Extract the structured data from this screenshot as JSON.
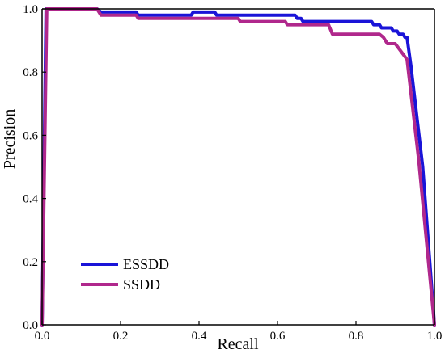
{
  "chart_data": {
    "type": "line",
    "title": "",
    "xlabel": "Recall",
    "ylabel": "Precision",
    "xlim": [
      0,
      1
    ],
    "ylim": [
      0,
      1
    ],
    "x_ticks": [
      "0.0",
      "0.2",
      "0.4",
      "0.6",
      "0.8",
      "1.0"
    ],
    "y_ticks": [
      "0.0",
      "0.2",
      "0.4",
      "0.6",
      "0.8",
      "1.0"
    ],
    "grid": false,
    "legend_position": "bottom-left",
    "series": [
      {
        "name": "ESSDD",
        "color": "#1a14d8",
        "points": [
          [
            0.0,
            0.0
          ],
          [
            0.01,
            1.0
          ],
          [
            0.14,
            1.0
          ],
          [
            0.15,
            0.99
          ],
          [
            0.24,
            0.99
          ],
          [
            0.245,
            0.98
          ],
          [
            0.38,
            0.98
          ],
          [
            0.385,
            0.99
          ],
          [
            0.44,
            0.99
          ],
          [
            0.445,
            0.98
          ],
          [
            0.46,
            0.98
          ],
          [
            0.465,
            0.98
          ],
          [
            0.645,
            0.98
          ],
          [
            0.65,
            0.97
          ],
          [
            0.66,
            0.97
          ],
          [
            0.665,
            0.96
          ],
          [
            0.84,
            0.96
          ],
          [
            0.845,
            0.95
          ],
          [
            0.86,
            0.95
          ],
          [
            0.865,
            0.94
          ],
          [
            0.89,
            0.94
          ],
          [
            0.895,
            0.93
          ],
          [
            0.905,
            0.93
          ],
          [
            0.91,
            0.92
          ],
          [
            0.92,
            0.92
          ],
          [
            0.925,
            0.91
          ],
          [
            0.93,
            0.91
          ],
          [
            0.94,
            0.82
          ],
          [
            0.97,
            0.5
          ],
          [
            1.0,
            0.0
          ]
        ]
      },
      {
        "name": "SSDD",
        "color": "#b0288c",
        "points": [
          [
            0.0,
            0.0
          ],
          [
            0.012,
            1.0
          ],
          [
            0.14,
            1.0
          ],
          [
            0.15,
            0.98
          ],
          [
            0.24,
            0.98
          ],
          [
            0.245,
            0.97
          ],
          [
            0.5,
            0.97
          ],
          [
            0.505,
            0.96
          ],
          [
            0.62,
            0.96
          ],
          [
            0.625,
            0.95
          ],
          [
            0.73,
            0.95
          ],
          [
            0.74,
            0.92
          ],
          [
            0.86,
            0.92
          ],
          [
            0.87,
            0.91
          ],
          [
            0.88,
            0.89
          ],
          [
            0.9,
            0.89
          ],
          [
            0.93,
            0.84
          ],
          [
            0.96,
            0.52
          ],
          [
            1.0,
            0.0
          ]
        ]
      }
    ]
  }
}
